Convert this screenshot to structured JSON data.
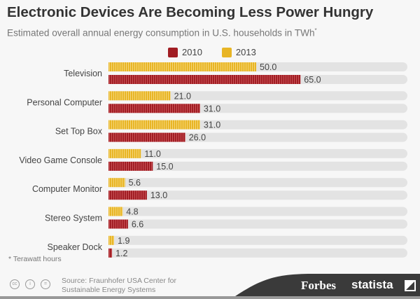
{
  "chart_data": {
    "type": "bar",
    "orientation": "horizontal",
    "title": "Electronic Devices Are Becoming Less Power Hungry",
    "subtitle": "Estimated overall annual energy consumption in U.S. households in TWh",
    "subtitle_mark": "*",
    "categories": [
      "Television",
      "Personal Computer",
      "Set Top Box",
      "Video Game Console",
      "Computer Monitor",
      "Stereo System",
      "Speaker Dock"
    ],
    "series": [
      {
        "name": "2013",
        "color": "#e8b525",
        "values": [
          50.0,
          21.0,
          31.0,
          11.0,
          5.6,
          4.8,
          1.9
        ]
      },
      {
        "name": "2010",
        "color": "#a11d23",
        "values": [
          65.0,
          31.0,
          26.0,
          15.0,
          13.0,
          6.6,
          1.2
        ]
      }
    ],
    "legend_order": [
      "2010",
      "2013"
    ],
    "xlim": [
      0,
      101
    ],
    "legend": "top-center",
    "grid": false
  },
  "footnote": "* Terawatt hours",
  "source": "Source: Fraunhofer USA Center for Sustainable Energy Systems",
  "license_icons": [
    "cc",
    "by",
    "nd"
  ],
  "brands": {
    "forbes": "Forbes",
    "statista": "statista"
  }
}
